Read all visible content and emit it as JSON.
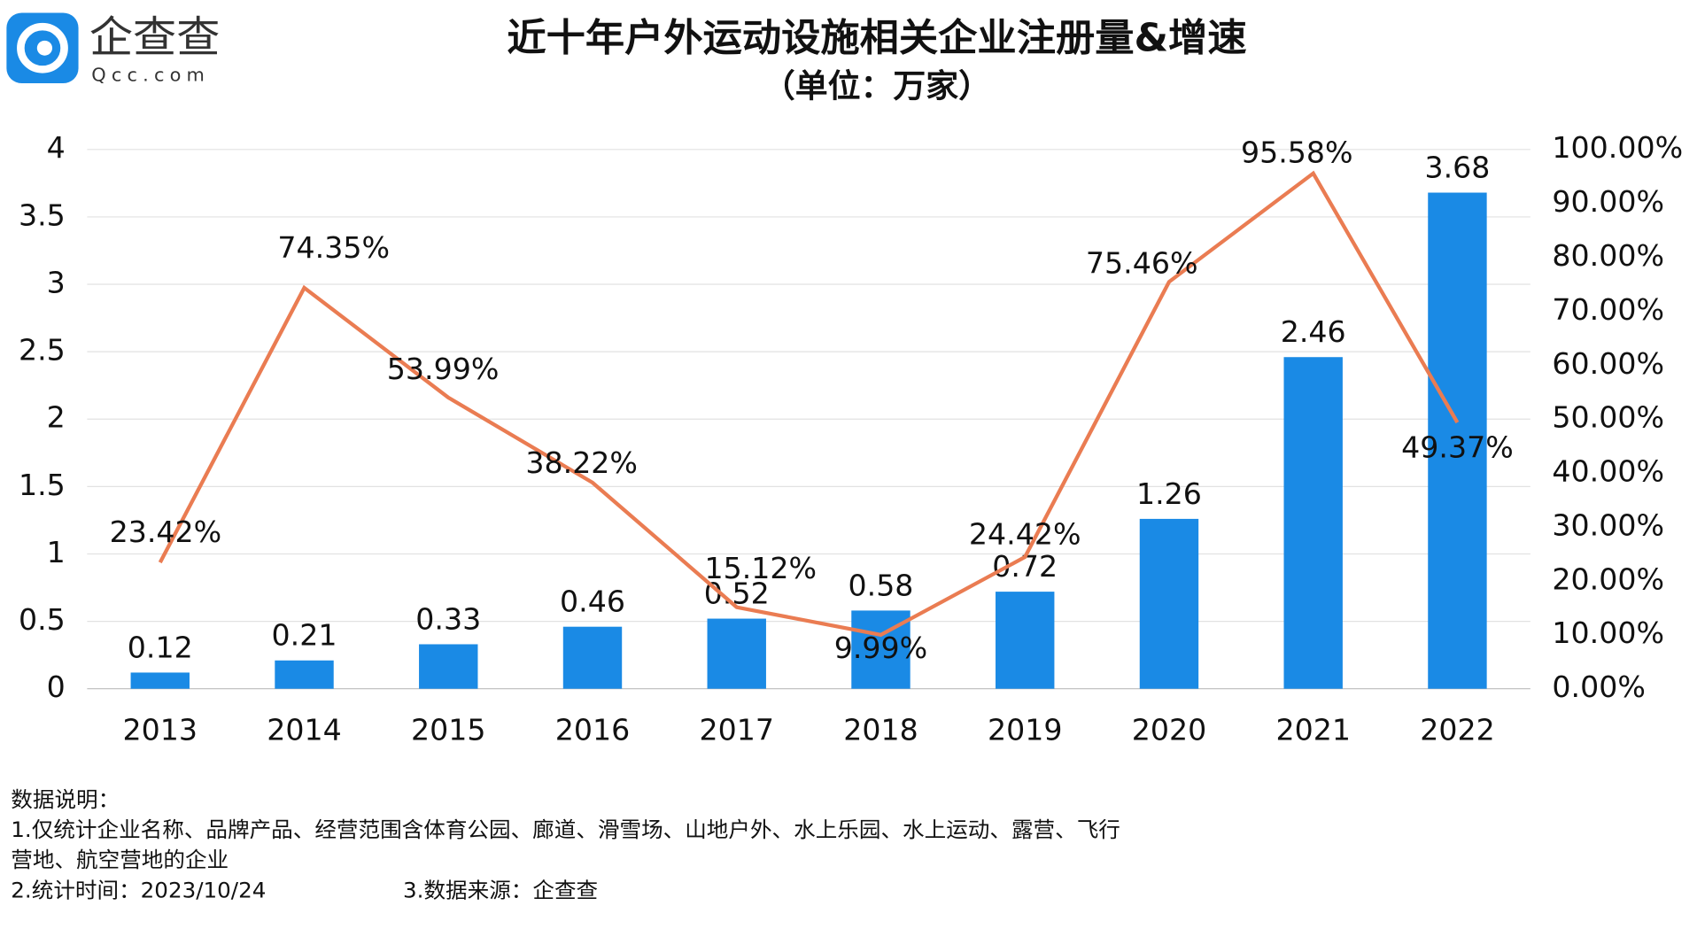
{
  "logo": {
    "name": "企查查",
    "url": "Qcc.com"
  },
  "chart_data": {
    "type": "bar",
    "title": "近十年户外运动设施相关企业注册量&增速",
    "subtitle": "（单位：万家）",
    "categories": [
      "2013",
      "2014",
      "2015",
      "2016",
      "2017",
      "2018",
      "2019",
      "2020",
      "2021",
      "2022"
    ],
    "series": [
      {
        "type": "bar",
        "color": "#1a8ae5",
        "values": [
          0.12,
          0.21,
          0.33,
          0.46,
          0.52,
          0.58,
          0.72,
          1.26,
          2.46,
          3.68
        ]
      },
      {
        "type": "line",
        "axis": "y2",
        "color": "#ea7c52",
        "values": [
          23.42,
          74.35,
          53.99,
          38.22,
          15.12,
          9.99,
          24.42,
          75.46,
          95.58,
          49.37
        ],
        "value_labels": [
          "23.42%",
          "74.35%",
          "53.99%",
          "38.22%",
          "15.12%",
          "9.99%",
          "24.42%",
          "75.46%",
          "95.58%",
          "49.37%"
        ]
      }
    ],
    "ylim": [
      0,
      4
    ],
    "yticks": [
      0,
      0.5,
      1,
      1.5,
      2,
      2.5,
      3,
      3.5,
      4
    ],
    "y2lim": [
      0,
      100
    ],
    "y2ticks": [
      {
        "value": 0,
        "label": "0.00%"
      },
      {
        "value": 10,
        "label": "10.00%"
      },
      {
        "value": 20,
        "label": "20.00%"
      },
      {
        "value": 30,
        "label": "30.00%"
      },
      {
        "value": 40,
        "label": "40.00%"
      },
      {
        "value": 50,
        "label": "50.00%"
      },
      {
        "value": 60,
        "label": "60.00%"
      },
      {
        "value": 70,
        "label": "70.00%"
      },
      {
        "value": 80,
        "label": "80.00%"
      },
      {
        "value": 90,
        "label": "90.00%"
      },
      {
        "value": 100,
        "label": "100.00%"
      }
    ],
    "grid": true
  },
  "notes": [
    "数据说明：",
    "1.仅统计企业名称、品牌产品、经营范围含体育公园、廊道、滑雪场、山地户外、水上乐园、水上运动、露营、飞行",
    "营地、航空营地的企业",
    "2.统计时间：2023/10/24",
    "3.数据来源：企查查"
  ]
}
